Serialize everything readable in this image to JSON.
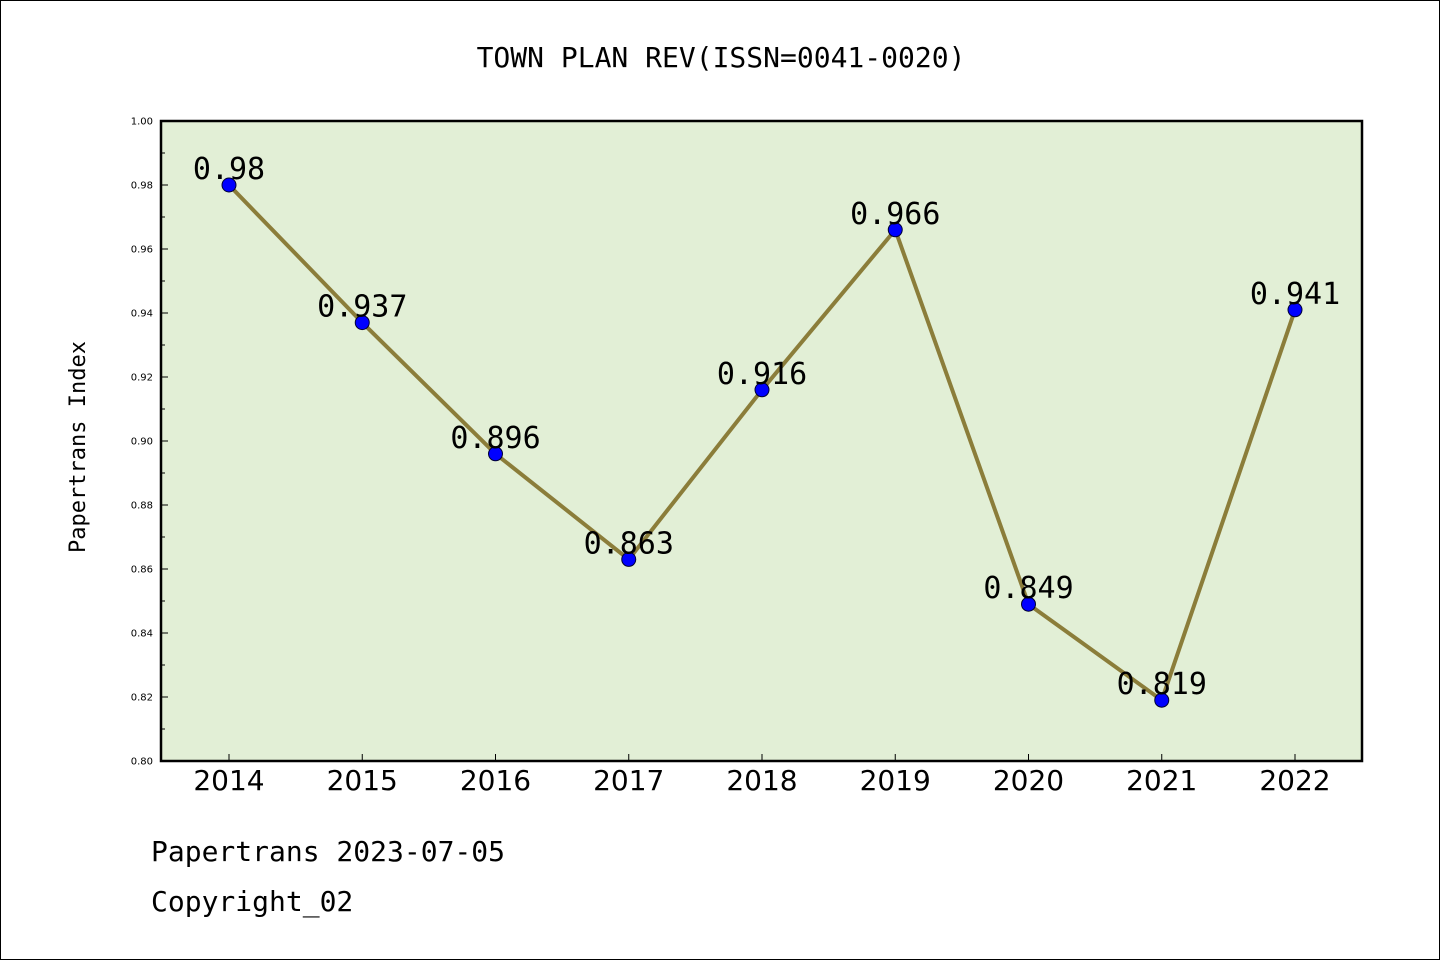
{
  "chart_data": {
    "type": "line",
    "title": "TOWN PLAN REV(ISSN=0041-0020)",
    "xlabel": "",
    "ylabel": "Papertrans Index",
    "categories": [
      "2014",
      "2015",
      "2016",
      "2017",
      "2018",
      "2019",
      "2020",
      "2021",
      "2022"
    ],
    "series": [
      {
        "values": [
          0.98,
          0.937,
          0.896,
          0.863,
          0.916,
          0.966,
          0.849,
          0.819,
          0.941
        ],
        "labels": [
          "0.98",
          "0.937",
          "0.896",
          "0.863",
          "0.916",
          "0.966",
          "0.849",
          "0.819",
          "0.941"
        ]
      }
    ],
    "ylim": [
      0.8,
      1.0
    ],
    "yticks": [
      "0.80",
      "0.82",
      "0.84",
      "0.86",
      "0.88",
      "0.90",
      "0.92",
      "0.94",
      "0.96",
      "0.98",
      "1.00"
    ],
    "grid": false,
    "colors": {
      "plot_background": "#e2efd6",
      "line": "#8b7d3a",
      "marker": "#0000ff"
    }
  },
  "footer": {
    "line1": "Papertrans 2023-07-05",
    "line2": "Copyright_02"
  }
}
